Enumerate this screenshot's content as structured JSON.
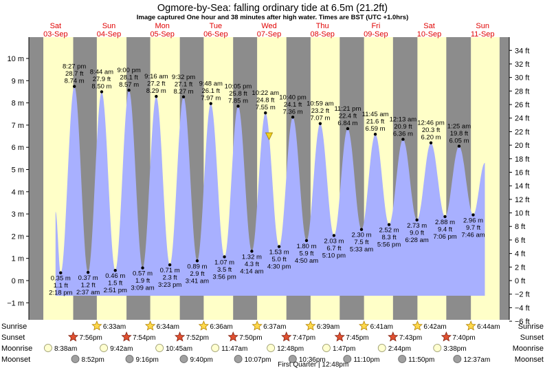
{
  "title": "Ogmore-by-Sea: falling  ordinary tide at 6.5m (21.2ft)",
  "subtitle": "Image captured One hour and 38 minutes after high water. Times are BST (UTC +1.0hrs)",
  "colors": {
    "day_bg": "#ffffc8",
    "night_bg": "#8c8c8c",
    "water": "#a8b0ff",
    "day_label": "#e00000",
    "sun_icon": "#ffd84a",
    "sunset_icon": "#e05030",
    "moonrise_icon": "#ffffd0",
    "moonset_icon": "#a0a0a0"
  },
  "days": [
    {
      "name": "Sat",
      "date": "03-Sep"
    },
    {
      "name": "Sun",
      "date": "04-Sep"
    },
    {
      "name": "Mon",
      "date": "05-Sep"
    },
    {
      "name": "Tue",
      "date": "06-Sep"
    },
    {
      "name": "Wed",
      "date": "07-Sep"
    },
    {
      "name": "Thu",
      "date": "08-Sep"
    },
    {
      "name": "Fri",
      "date": "09-Sep"
    },
    {
      "name": "Sat",
      "date": "10-Sep"
    },
    {
      "name": "Sun",
      "date": "11-Sep"
    }
  ],
  "row_labels": {
    "sunrise": "Sunrise",
    "sunset": "Sunset",
    "moonrise": "Moonrise",
    "moonset": "Moonset"
  },
  "moon_phase": "First Quarter | 12:48pm",
  "chart_data": {
    "type": "area",
    "title": "Ogmore-by-Sea: falling  ordinary tide at 6.5m (21.2ft)",
    "y_left_ticks": [
      "10 m",
      "9 m",
      "8 m",
      "7 m",
      "6 m",
      "5 m",
      "4 m",
      "3 m",
      "2 m",
      "1 m",
      "0 m",
      "−1 m"
    ],
    "y_right_ticks": [
      "34 ft",
      "32 ft",
      "30 ft",
      "28 ft",
      "26 ft",
      "24 ft",
      "22 ft",
      "20 ft",
      "18 ft",
      "16 ft",
      "14 ft",
      "12 ft",
      "10 ft",
      "8 ft",
      "6 ft",
      "4 ft",
      "2 ft",
      "0 ft",
      "−2 ft",
      "−4 ft",
      "−6 ft"
    ],
    "ylim_m": [
      -1.4,
      10.5
    ],
    "start": "2022-09-03 00:00",
    "end": "2022-09-11 23:59",
    "tides": [
      {
        "type": "low",
        "t": "2022-09-03 14:18",
        "m": 0.35,
        "lines": [
          "0.35 m",
          "1.1 ft",
          "2:18 pm"
        ]
      },
      {
        "type": "high",
        "t": "2022-09-03 20:27",
        "m": 8.74,
        "lines": [
          "8:27 pm",
          "28.7 ft",
          "8.74 m"
        ]
      },
      {
        "type": "low",
        "t": "2022-09-04 02:37",
        "m": 0.37,
        "lines": [
          "0.37 m",
          "1.2 ft",
          "2:37 am"
        ]
      },
      {
        "type": "high",
        "t": "2022-09-04 08:44",
        "m": 8.5,
        "lines": [
          "8:44 am",
          "27.9 ft",
          "8.50 m"
        ]
      },
      {
        "type": "low",
        "t": "2022-09-04 14:51",
        "m": 0.46,
        "lines": [
          "0.46 m",
          "1.5 ft",
          "2:51 pm"
        ]
      },
      {
        "type": "high",
        "t": "2022-09-04 21:00",
        "m": 8.57,
        "lines": [
          "9:00 pm",
          "28.1 ft",
          "8.57 m"
        ]
      },
      {
        "type": "low",
        "t": "2022-09-05 03:09",
        "m": 0.57,
        "lines": [
          "0.57 m",
          "1.9 ft",
          "3:09 am"
        ]
      },
      {
        "type": "high",
        "t": "2022-09-05 09:16",
        "m": 8.29,
        "lines": [
          "9:16 am",
          "27.2 ft",
          "8.29 m"
        ]
      },
      {
        "type": "low",
        "t": "2022-09-05 15:23",
        "m": 0.71,
        "lines": [
          "0.71 m",
          "2.3 ft",
          "3:23 pm"
        ]
      },
      {
        "type": "high",
        "t": "2022-09-05 21:32",
        "m": 8.27,
        "lines": [
          "9:32 pm",
          "27.1 ft",
          "8.27 m"
        ]
      },
      {
        "type": "low",
        "t": "2022-09-06 03:41",
        "m": 0.89,
        "lines": [
          "0.89 m",
          "2.9 ft",
          "3:41 am"
        ]
      },
      {
        "type": "high",
        "t": "2022-09-06 09:48",
        "m": 7.97,
        "lines": [
          "9:48 am",
          "26.1 ft",
          "7.97 m"
        ]
      },
      {
        "type": "low",
        "t": "2022-09-06 15:56",
        "m": 1.07,
        "lines": [
          "1.07 m",
          "3.5 ft",
          "3:56 pm"
        ]
      },
      {
        "type": "high",
        "t": "2022-09-06 22:05",
        "m": 7.85,
        "lines": [
          "10:05 pm",
          "25.8 ft",
          "7.85 m"
        ]
      },
      {
        "type": "low",
        "t": "2022-09-07 04:14",
        "m": 1.32,
        "lines": [
          "1.32 m",
          "4.3 ft",
          "4:14 am"
        ]
      },
      {
        "type": "high",
        "t": "2022-09-07 10:22",
        "m": 7.55,
        "lines": [
          "10:22 am",
          "24.8 ft",
          "7.55 m"
        ]
      },
      {
        "type": "low",
        "t": "2022-09-07 16:30",
        "m": 1.53,
        "lines": [
          "1.53 m",
          "5.0 ft",
          "4:30 pm"
        ]
      },
      {
        "type": "high",
        "t": "2022-09-07 22:40",
        "m": 7.36,
        "lines": [
          "10:40 pm",
          "24.1 ft",
          "7.36 m"
        ]
      },
      {
        "type": "low",
        "t": "2022-09-08 04:50",
        "m": 1.8,
        "lines": [
          "1.80 m",
          "5.9 ft",
          "4:50 am"
        ]
      },
      {
        "type": "high",
        "t": "2022-09-08 10:59",
        "m": 7.07,
        "lines": [
          "10:59 am",
          "23.2 ft",
          "7.07 m"
        ]
      },
      {
        "type": "low",
        "t": "2022-09-08 17:10",
        "m": 2.03,
        "lines": [
          "2.03 m",
          "6.7 ft",
          "5:10 pm"
        ]
      },
      {
        "type": "high",
        "t": "2022-09-08 23:21",
        "m": 6.84,
        "lines": [
          "11:21 pm",
          "22.4 ft",
          "6.84 m"
        ]
      },
      {
        "type": "low",
        "t": "2022-09-09 05:33",
        "m": 2.3,
        "lines": [
          "2.30 m",
          "7.5 ft",
          "5:33 am"
        ]
      },
      {
        "type": "high",
        "t": "2022-09-09 11:45",
        "m": 6.59,
        "lines": [
          "11:45 am",
          "21.6 ft",
          "6.59 m"
        ]
      },
      {
        "type": "low",
        "t": "2022-09-09 17:56",
        "m": 2.52,
        "lines": [
          "2.52 m",
          "8.3 ft",
          "5:56 pm"
        ]
      },
      {
        "type": "high",
        "t": "2022-09-10 00:13",
        "m": 6.36,
        "lines": [
          "12:13 am",
          "20.9 ft",
          "6.36 m"
        ]
      },
      {
        "type": "low",
        "t": "2022-09-10 06:28",
        "m": 2.73,
        "lines": [
          "2.73 m",
          "9.0 ft",
          "6:28 am"
        ]
      },
      {
        "type": "high",
        "t": "2022-09-10 12:46",
        "m": 6.2,
        "lines": [
          "12:46 pm",
          "20.3 ft",
          "6.20 m"
        ]
      },
      {
        "type": "low",
        "t": "2022-09-10 19:06",
        "m": 2.88,
        "lines": [
          "2.88 m",
          "9.4 ft",
          "7:06 pm"
        ]
      },
      {
        "type": "high",
        "t": "2022-09-11 01:25",
        "m": 6.05,
        "lines": [
          "1:25 am",
          "19.8 ft",
          "6.05 m"
        ]
      },
      {
        "type": "low",
        "t": "2022-09-11 07:46",
        "m": 2.96,
        "lines": [
          "2.96 m",
          "9.7 ft",
          "7:46 am"
        ]
      }
    ],
    "curve_start": {
      "t": "2022-09-03 12:00",
      "m": 3.1
    },
    "curve_end": {
      "t": "2022-09-11 13:00",
      "m": 5.3
    },
    "current": {
      "t": "2022-09-07 12:00",
      "m": 6.5
    },
    "sunrise": [
      {
        "t": "2022-09-04 06:33",
        "label": "6:33am"
      },
      {
        "t": "2022-09-05 06:34",
        "label": "6:34am"
      },
      {
        "t": "2022-09-06 06:36",
        "label": "6:36am"
      },
      {
        "t": "2022-09-07 06:37",
        "label": "6:37am"
      },
      {
        "t": "2022-09-08 06:39",
        "label": "6:39am"
      },
      {
        "t": "2022-09-09 06:41",
        "label": "6:41am"
      },
      {
        "t": "2022-09-10 06:42",
        "label": "6:42am"
      },
      {
        "t": "2022-09-11 06:44",
        "label": "6:44am"
      }
    ],
    "sunset": [
      {
        "t": "2022-09-03 19:56",
        "label": "7:56pm"
      },
      {
        "t": "2022-09-04 19:54",
        "label": "7:54pm"
      },
      {
        "t": "2022-09-05 19:52",
        "label": "7:52pm"
      },
      {
        "t": "2022-09-06 19:50",
        "label": "7:50pm"
      },
      {
        "t": "2022-09-07 19:47",
        "label": "7:47pm"
      },
      {
        "t": "2022-09-08 19:45",
        "label": "7:45pm"
      },
      {
        "t": "2022-09-09 19:43",
        "label": "7:43pm"
      },
      {
        "t": "2022-09-10 19:40",
        "label": "7:40pm"
      }
    ],
    "moonrise": [
      {
        "t": "2022-09-03 08:38",
        "label": "8:38am"
      },
      {
        "t": "2022-09-04 09:42",
        "label": "9:42am"
      },
      {
        "t": "2022-09-05 10:45",
        "label": "10:45am"
      },
      {
        "t": "2022-09-06 11:47",
        "label": "11:47am"
      },
      {
        "t": "2022-09-07 12:48",
        "label": "12:48pm"
      },
      {
        "t": "2022-09-08 13:47",
        "label": "1:47pm"
      },
      {
        "t": "2022-09-09 14:44",
        "label": "2:44pm"
      },
      {
        "t": "2022-09-10 15:38",
        "label": "3:38pm"
      }
    ],
    "moonset": [
      {
        "t": "2022-09-03 20:52",
        "label": "8:52pm"
      },
      {
        "t": "2022-09-04 21:16",
        "label": "9:16pm"
      },
      {
        "t": "2022-09-05 21:40",
        "label": "9:40pm"
      },
      {
        "t": "2022-09-06 22:07",
        "label": "10:07pm"
      },
      {
        "t": "2022-09-07 22:36",
        "label": "10:36pm"
      },
      {
        "t": "2022-09-08 23:10",
        "label": "11:10pm"
      },
      {
        "t": "2022-09-09 23:50",
        "label": "11:50pm"
      },
      {
        "t": "2022-09-11 00:37",
        "label": "12:37am"
      }
    ]
  }
}
